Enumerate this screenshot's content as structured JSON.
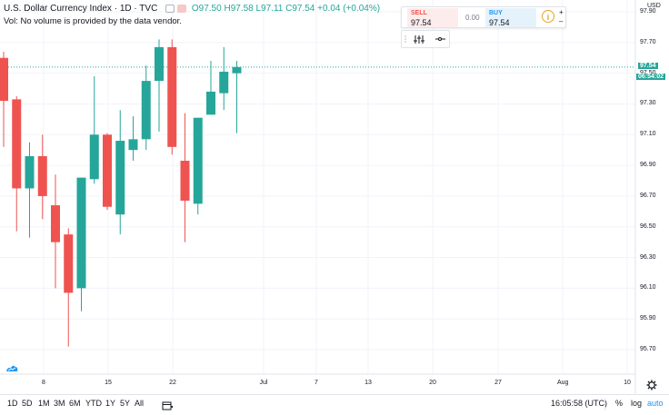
{
  "legend": {
    "title": "U.S. Dollar Currency Index · 1D · TVC",
    "open": "O97.50",
    "high": "H97.58",
    "low": "L97.11",
    "close": "C97.54",
    "change": "+0.04 (+0.04%)"
  },
  "volume_note": "Vol: No volume is provided by the data vendor.",
  "trade_panel": {
    "sell_label": "SELL",
    "sell_price": "97.54",
    "spread": "0.00",
    "buy_label": "BUY",
    "buy_price": "97.54",
    "info_icon": "info-icon",
    "plus": "+",
    "minus": "–"
  },
  "price_axis": {
    "currency": "USD",
    "last_price_tag": "97.54",
    "countdown_tag": "06:54:02"
  },
  "bottom_bar": {
    "ranges": [
      "1D",
      "5D",
      "1M",
      "3M",
      "6M",
      "YTD",
      "1Y",
      "5Y",
      "All"
    ],
    "time": "16:05:58 (UTC)",
    "percent": "%",
    "log": "log",
    "auto": "auto"
  },
  "colors": {
    "up": "#26a69a",
    "down": "#ef5350",
    "grid": "#f0f3fa",
    "last_price_line": "#26a69a"
  },
  "chart_data": {
    "type": "candlestick",
    "y_ticks": [
      "97.90",
      "97.70",
      "97.50",
      "97.30",
      "97.10",
      "96.90",
      "96.70",
      "96.50",
      "96.30",
      "96.10",
      "95.90",
      "95.70"
    ],
    "x_ticks": [
      "8",
      "15",
      "22",
      "Jul",
      "7",
      "13",
      "20",
      "27",
      "Aug",
      "10"
    ],
    "last_price": 97.54,
    "candles": [
      {
        "o": 97.6,
        "h": 97.64,
        "l": 97.02,
        "c": 97.32
      },
      {
        "o": 97.33,
        "h": 97.35,
        "l": 96.47,
        "c": 96.75
      },
      {
        "o": 96.75,
        "h": 97.05,
        "l": 96.43,
        "c": 96.96
      },
      {
        "o": 96.96,
        "h": 97.1,
        "l": 96.55,
        "c": 96.7
      },
      {
        "o": 96.64,
        "h": 96.84,
        "l": 96.1,
        "c": 96.4
      },
      {
        "o": 96.45,
        "h": 96.49,
        "l": 95.72,
        "c": 96.07
      },
      {
        "o": 96.1,
        "h": 96.82,
        "l": 95.95,
        "c": 96.82
      },
      {
        "o": 96.81,
        "h": 97.48,
        "l": 96.78,
        "c": 97.1
      },
      {
        "o": 97.1,
        "h": 97.11,
        "l": 96.61,
        "c": 96.63
      },
      {
        "o": 96.58,
        "h": 97.26,
        "l": 96.45,
        "c": 97.06
      },
      {
        "o": 97.0,
        "h": 97.22,
        "l": 96.93,
        "c": 97.07
      },
      {
        "o": 97.07,
        "h": 97.55,
        "l": 97.0,
        "c": 97.45
      },
      {
        "o": 97.45,
        "h": 97.72,
        "l": 97.12,
        "c": 97.67
      },
      {
        "o": 97.67,
        "h": 97.72,
        "l": 96.97,
        "c": 97.02
      },
      {
        "o": 96.93,
        "h": 97.24,
        "l": 96.4,
        "c": 96.67
      },
      {
        "o": 96.65,
        "h": 97.21,
        "l": 96.58,
        "c": 97.21
      },
      {
        "o": 97.23,
        "h": 97.58,
        "l": 97.23,
        "c": 97.38
      },
      {
        "o": 97.37,
        "h": 97.67,
        "l": 97.26,
        "c": 97.51
      },
      {
        "o": 97.5,
        "h": 97.58,
        "l": 97.11,
        "c": 97.54
      }
    ]
  }
}
